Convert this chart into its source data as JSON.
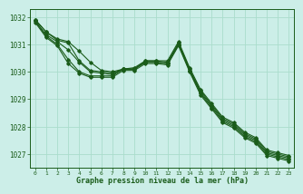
{
  "background_color": "#cceee8",
  "grid_color": "#aaddcc",
  "line_color": "#1a5c1a",
  "title": "Graphe pression niveau de la mer (hPa)",
  "xlim": [
    -0.5,
    23.5
  ],
  "ylim": [
    1026.5,
    1032.3
  ],
  "yticks": [
    1027,
    1028,
    1029,
    1030,
    1031,
    1032
  ],
  "xticks": [
    0,
    1,
    2,
    3,
    4,
    5,
    6,
    7,
    8,
    9,
    10,
    11,
    12,
    13,
    14,
    15,
    16,
    17,
    18,
    19,
    20,
    21,
    22,
    23
  ],
  "series": [
    [
      1031.9,
      1031.45,
      1031.2,
      1031.1,
      1030.75,
      1030.35,
      1030.05,
      1030.0,
      1030.1,
      1030.15,
      1030.4,
      1030.4,
      1030.4,
      1031.1,
      1030.15,
      1029.35,
      1028.85,
      1028.35,
      1028.15,
      1027.8,
      1027.6,
      1027.15,
      1027.05,
      1026.95
    ],
    [
      1031.9,
      1031.45,
      1031.15,
      1031.05,
      1030.4,
      1030.05,
      1030.0,
      1029.95,
      1030.1,
      1030.1,
      1030.4,
      1030.4,
      1030.35,
      1031.05,
      1030.1,
      1029.3,
      1028.8,
      1028.3,
      1028.1,
      1027.75,
      1027.55,
      1027.1,
      1027.0,
      1026.9
    ],
    [
      1031.85,
      1031.35,
      1031.1,
      1030.8,
      1030.35,
      1030.0,
      1029.95,
      1029.9,
      1030.1,
      1030.1,
      1030.35,
      1030.35,
      1030.3,
      1031.0,
      1030.05,
      1029.25,
      1028.75,
      1028.25,
      1028.05,
      1027.7,
      1027.5,
      1027.05,
      1026.95,
      1026.85
    ],
    [
      1031.85,
      1031.3,
      1031.0,
      1030.45,
      1030.0,
      1029.85,
      1029.85,
      1029.85,
      1030.1,
      1030.1,
      1030.35,
      1030.35,
      1030.3,
      1031.0,
      1030.05,
      1029.2,
      1028.7,
      1028.2,
      1028.0,
      1027.65,
      1027.45,
      1027.0,
      1026.9,
      1026.8
    ],
    [
      1031.8,
      1031.25,
      1030.95,
      1030.3,
      1029.95,
      1029.8,
      1029.8,
      1029.8,
      1030.05,
      1030.05,
      1030.3,
      1030.3,
      1030.25,
      1030.95,
      1030.0,
      1029.15,
      1028.65,
      1028.15,
      1027.95,
      1027.6,
      1027.4,
      1026.95,
      1026.85,
      1026.75
    ]
  ]
}
